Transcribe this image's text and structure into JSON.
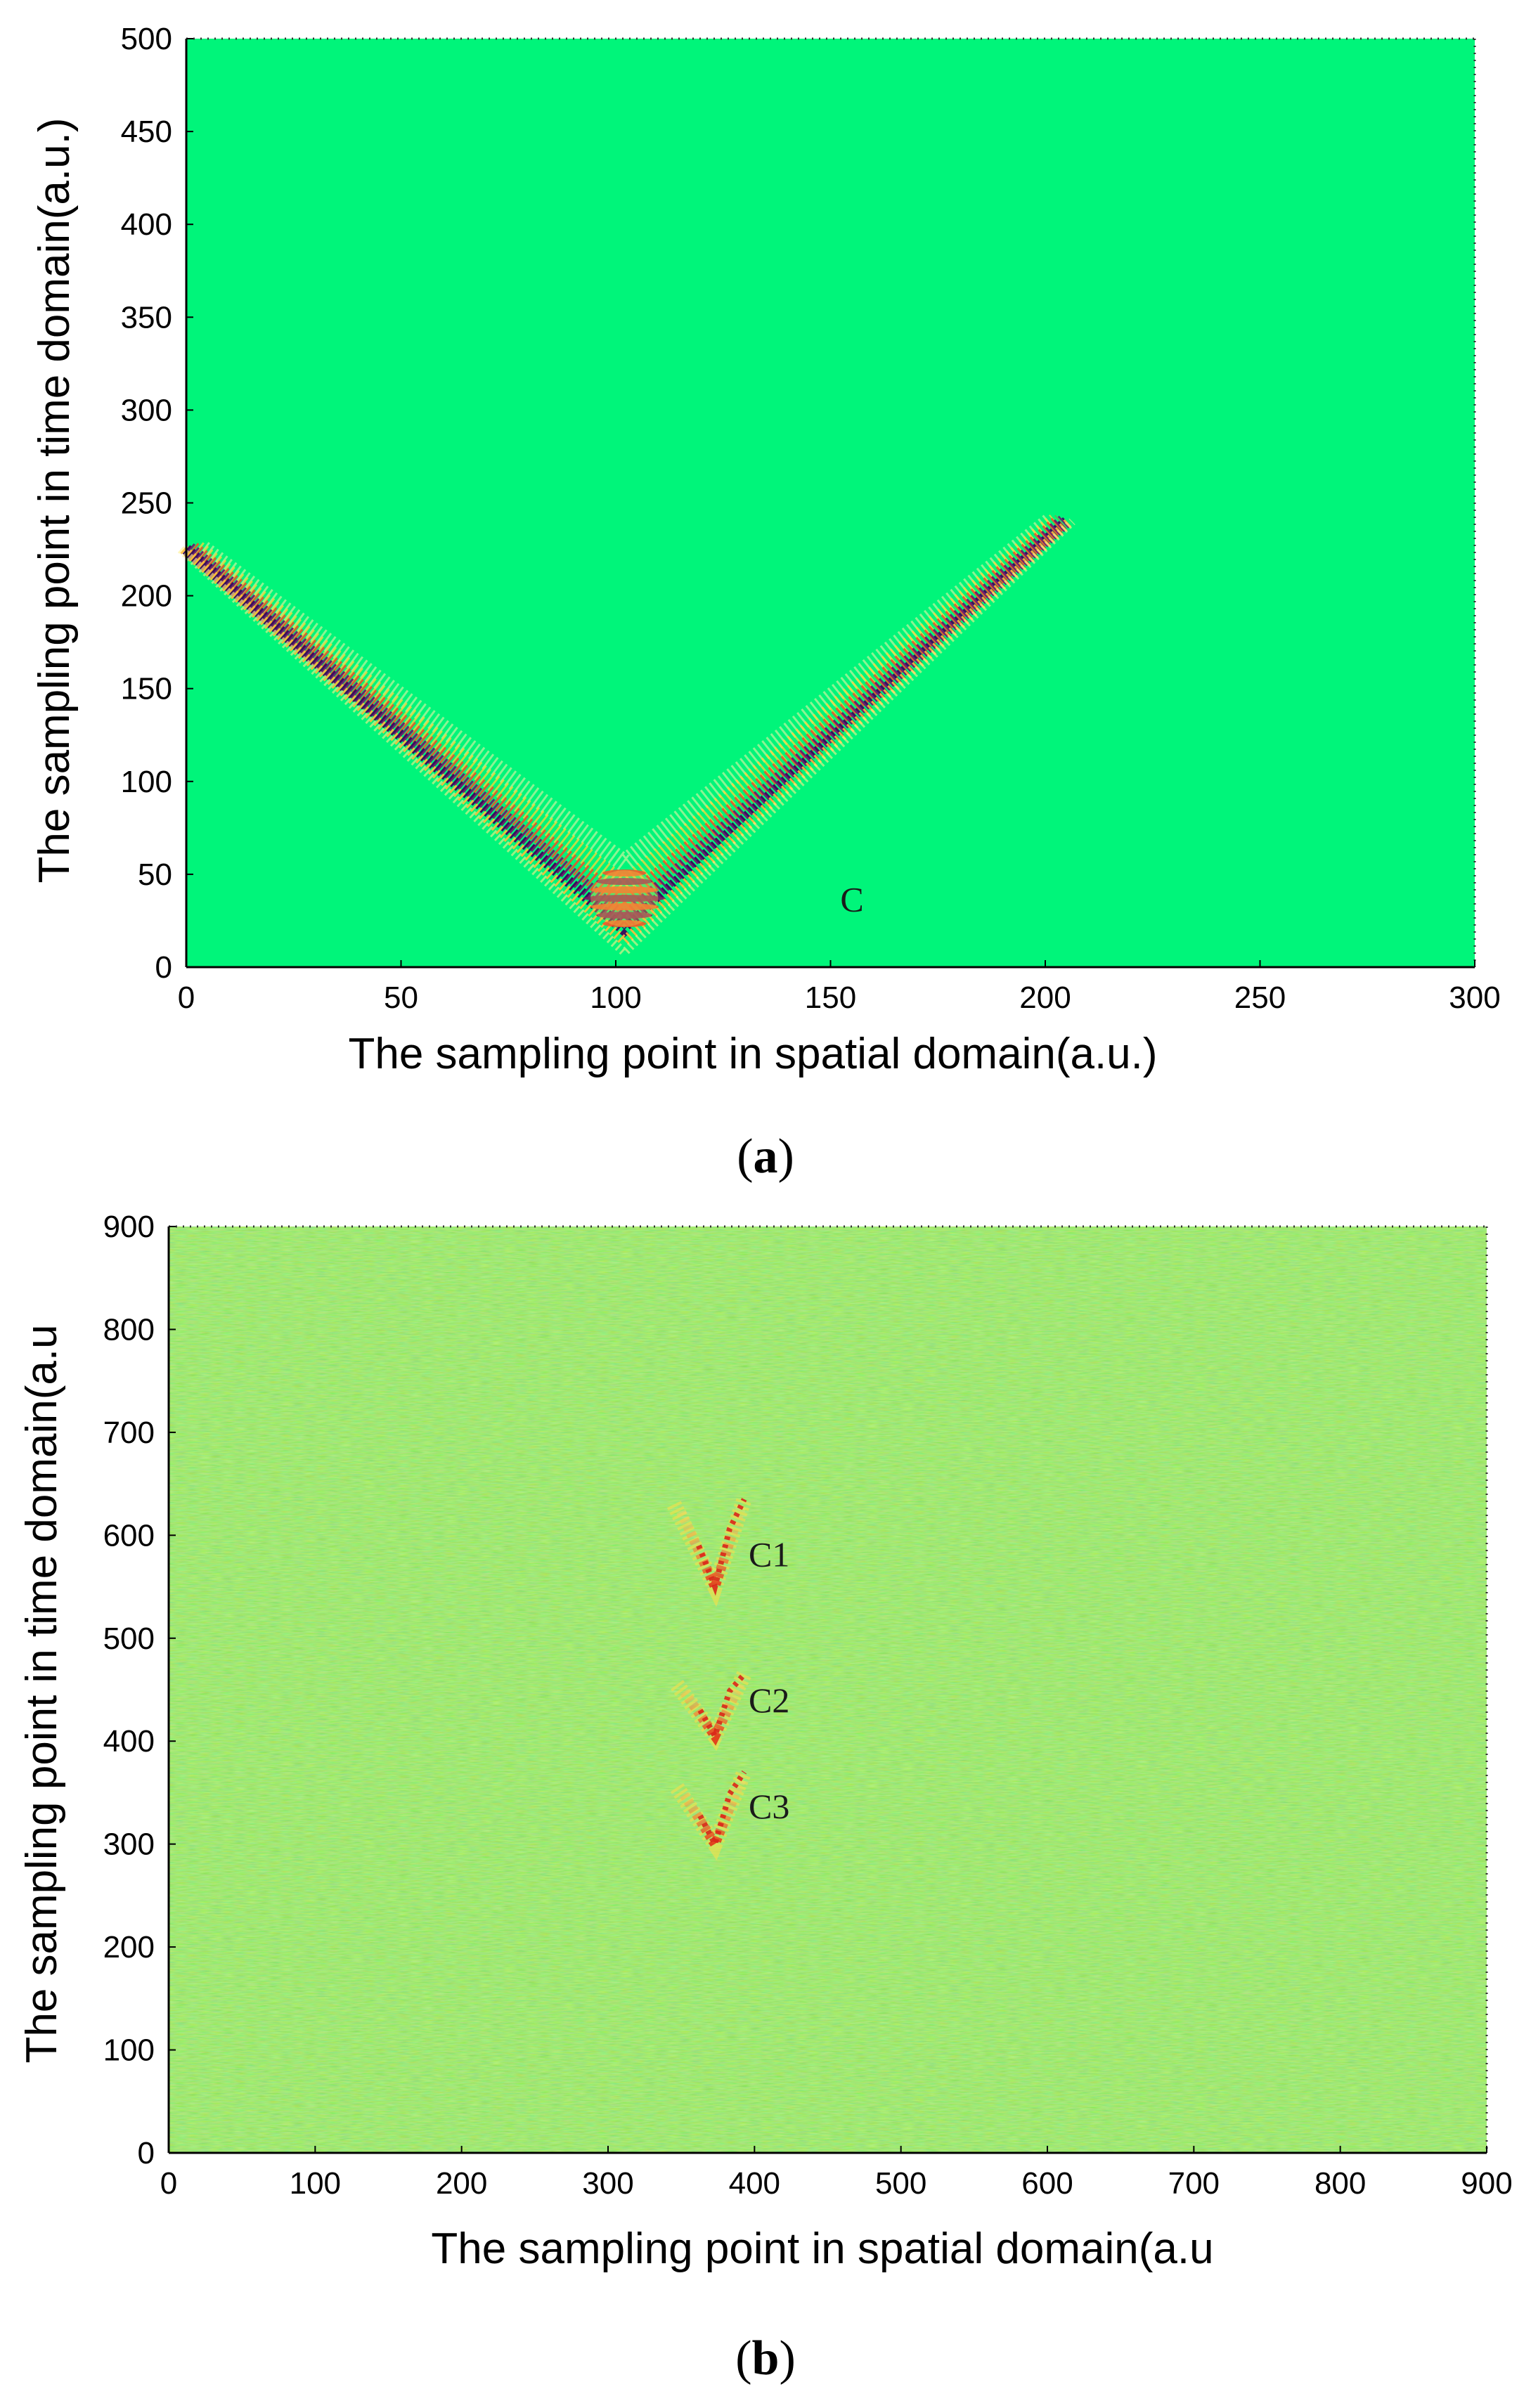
{
  "chart_data": [
    {
      "type": "heatmap",
      "panel_label": "a",
      "title": "",
      "xlabel": "The sampling point in spatial domain(a.u.)",
      "ylabel": "The sampling point in time domain(a.u.)",
      "xlim": [
        0,
        300
      ],
      "ylim": [
        0,
        500
      ],
      "xticks": [
        0,
        50,
        100,
        150,
        200,
        250,
        300
      ],
      "yticks": [
        0,
        50,
        100,
        150,
        200,
        250,
        300,
        350,
        400,
        450,
        500
      ],
      "background_color": "#00f57a",
      "grid": false,
      "legend": "none",
      "features": [
        {
          "kind": "v-shaped wave pattern",
          "apex": [
            102,
            20
          ],
          "left_end": [
            0,
            225
          ],
          "right_end": [
            205,
            240
          ]
        }
      ],
      "annotations": [
        {
          "text": "C",
          "x": 155,
          "y": 30
        }
      ]
    },
    {
      "type": "heatmap",
      "panel_label": "b",
      "title": "",
      "xlabel": "The sampling point in spatial domain(a.u",
      "ylabel": "The sampling point in time domain(a.u",
      "xlim": [
        0,
        900
      ],
      "ylim": [
        0,
        900
      ],
      "xticks": [
        0,
        100,
        200,
        300,
        400,
        500,
        600,
        700,
        800,
        900
      ],
      "yticks": [
        0,
        100,
        200,
        300,
        400,
        500,
        600,
        700,
        800,
        900
      ],
      "background_color": "#7fe840",
      "grid": false,
      "legend": "none",
      "features": [
        {
          "kind": "v-shaped wave pattern",
          "apex": [
            373,
            550
          ],
          "left_end": [
            345,
            630
          ],
          "right_end": [
            393,
            635
          ]
        },
        {
          "kind": "v-shaped wave pattern",
          "apex": [
            373,
            405
          ],
          "left_end": [
            347,
            455
          ],
          "right_end": [
            393,
            465
          ]
        },
        {
          "kind": "v-shaped wave pattern",
          "apex": [
            373,
            300
          ],
          "left_end": [
            347,
            355
          ],
          "right_end": [
            393,
            370
          ]
        }
      ],
      "annotations": [
        {
          "text": "C1",
          "x": 410,
          "y": 570
        },
        {
          "text": "C2",
          "x": 410,
          "y": 428
        },
        {
          "text": "C3",
          "x": 410,
          "y": 325
        }
      ]
    }
  ]
}
